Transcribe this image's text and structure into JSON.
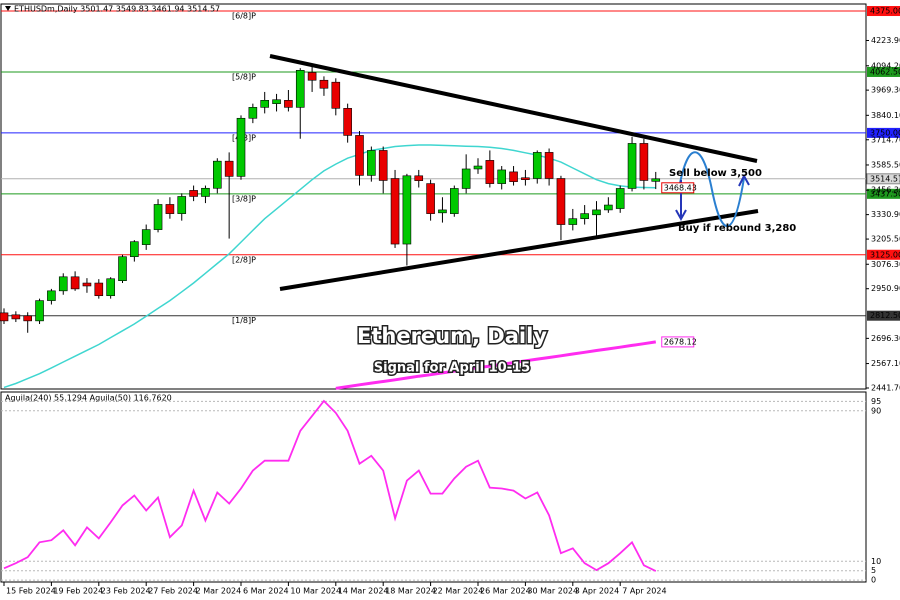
{
  "chart_data": [
    {
      "type": "candlestick",
      "title": "ETHUSDm,Daily  3501.47 3549.83 3461.94 3514.57",
      "overlay_title": "Ethereum, Daily",
      "subtitle": "Signal for April 10-15",
      "annotations": [
        {
          "text": "Sell below 3,500",
          "color": "#e8203a"
        },
        {
          "text": "Buy if rebound 3,280",
          "color": "#2536b8"
        }
      ],
      "categories": [
        "15 Feb 2024",
        null,
        null,
        null,
        "19 Feb 2024",
        null,
        null,
        null,
        "23 Feb 2024",
        null,
        null,
        null,
        "27 Feb 2024",
        null,
        null,
        null,
        "2 Mar 2024",
        null,
        null,
        null,
        "6 Mar 2024",
        null,
        null,
        null,
        "10 Mar 2024",
        null,
        null,
        null,
        "14 Mar 2024",
        null,
        null,
        null,
        "18 Mar 2024",
        null,
        null,
        null,
        "22 Mar 2024",
        null,
        null,
        null,
        "26 Mar 2024",
        null,
        null,
        null,
        "30 Mar 2024",
        null,
        null,
        null,
        "3 Apr 2024",
        null,
        null,
        null,
        "7 Apr 2024",
        null,
        null,
        null
      ],
      "open": [
        2827,
        2817,
        2812,
        2786,
        2890,
        2940,
        3012,
        2980,
        2980,
        2915,
        2992,
        3115,
        3177,
        3254,
        3383,
        3336,
        3455,
        3424,
        3466,
        3605,
        3527,
        3825,
        3881,
        3900,
        3917,
        3881,
        4060,
        4020,
        4010,
        3876,
        3737,
        3532,
        3660,
        3516,
        3180,
        3530,
        3490,
        3340,
        3336,
        3465,
        3565,
        3609,
        3490,
        3550,
        3520,
        3516,
        3650,
        3516,
        3280,
        3310,
        3330,
        3355,
        3362,
        3465,
        3696,
        3501.47
      ],
      "high": [
        2850,
        2835,
        2830,
        2900,
        2950,
        3030,
        3040,
        3005,
        3000,
        3010,
        3125,
        3200,
        3280,
        3410,
        3420,
        3440,
        3480,
        3480,
        3620,
        3650,
        3840,
        3900,
        3960,
        3950,
        3970,
        4082,
        4090,
        4040,
        4030,
        3900,
        3760,
        3680,
        3680,
        3560,
        3540,
        3560,
        3510,
        3420,
        3480,
        3640,
        3620,
        3660,
        3580,
        3580,
        3560,
        3660,
        3670,
        3530,
        3360,
        3380,
        3400,
        3420,
        3480,
        3730,
        3720,
        3549.83
      ],
      "low": [
        2770,
        2780,
        2725,
        2770,
        2870,
        2920,
        2940,
        2930,
        2900,
        2900,
        2980,
        3090,
        3150,
        3240,
        3310,
        3300,
        3400,
        3390,
        3440,
        3208,
        3510,
        3800,
        3850,
        3860,
        3860,
        3720,
        3960,
        3940,
        3840,
        3700,
        3480,
        3500,
        3440,
        3160,
        3070,
        3470,
        3300,
        3290,
        3320,
        3440,
        3540,
        3470,
        3460,
        3480,
        3480,
        3490,
        3480,
        3200,
        3250,
        3280,
        3210,
        3340,
        3340,
        3450,
        3460,
        3461.94
      ],
      "close": [
        2786,
        2796,
        2786,
        2890,
        2940,
        3012,
        2950,
        2965,
        2915,
        3002,
        3115,
        3192,
        3254,
        3383,
        3336,
        3424,
        3424,
        3466,
        3605,
        3527,
        3825,
        3881,
        3917,
        3920,
        3881,
        4071,
        4020,
        3979,
        3876,
        3737,
        3532,
        3660,
        3506,
        3180,
        3530,
        3505,
        3336,
        3355,
        3465,
        3565,
        3580,
        3490,
        3560,
        3500,
        3510,
        3650,
        3516,
        3280,
        3310,
        3336,
        3355,
        3380,
        3465,
        3696,
        3506,
        3514.57
      ],
      "up_color": "#00c800",
      "down_color": "#e80000",
      "series": [
        {
          "color": "#3fd6d0",
          "values": [
            2445,
            2465,
            2490,
            2515,
            2545,
            2575,
            2605,
            2635,
            2665,
            2700,
            2735,
            2770,
            2810,
            2850,
            2890,
            2935,
            2980,
            3030,
            3080,
            3130,
            3190,
            3250,
            3310,
            3360,
            3410,
            3460,
            3510,
            3555,
            3590,
            3620,
            3640,
            3660,
            3670,
            3680,
            3685,
            3688,
            3688,
            3686,
            3684,
            3682,
            3680,
            3676,
            3670,
            3660,
            3648,
            3636,
            3620,
            3600,
            3570,
            3540,
            3510,
            3490,
            3478,
            3472,
            3470,
            3468.43
          ]
        },
        {
          "color": "#ff2cf0",
          "values": [
            null,
            null,
            null,
            null,
            null,
            null,
            null,
            null,
            null,
            null,
            null,
            null,
            null,
            null,
            null,
            null,
            null,
            null,
            null,
            null,
            null,
            null,
            null,
            null,
            null,
            null,
            null,
            null,
            2440,
            2449,
            2458,
            2467,
            2475,
            2484,
            2493,
            2502,
            2510,
            2519,
            2528,
            2537,
            2546,
            2554,
            2563,
            2572,
            2581,
            2590,
            2598,
            2607,
            2616,
            2625,
            2634,
            2642,
            2651,
            2660,
            2669,
            2678.12
          ]
        }
      ],
      "levels": [
        {
          "name": "[6/8]P",
          "value": 4375,
          "label": "4375.00",
          "color": "#ff1010"
        },
        {
          "name": "[5/8]P",
          "value": 4062.5,
          "label": "4062.50",
          "color": "#1e9a1e"
        },
        {
          "name": "[4/8]P",
          "value": 3750,
          "label": "3750.00",
          "color": "#2020ff"
        },
        {
          "name": "[3/8]P",
          "value": 3437.5,
          "label": "3437.50",
          "color": "#1e9a1e"
        },
        {
          "name": "[2/8]P",
          "value": 3125,
          "label": "3125.00",
          "color": "#ff1010"
        },
        {
          "name": "[1/8]P",
          "value": 2812.5,
          "label": "2812.50",
          "color": "#333333"
        }
      ],
      "ylim": [
        2436.6,
        4411
      ],
      "yticks": [
        {
          "value": 4223.9,
          "label": "4223.90"
        },
        {
          "value": 4094.2,
          "label": "4094.20"
        },
        {
          "value": 3969.3,
          "label": "3969.30"
        },
        {
          "value": 3840.1,
          "label": "3840.10"
        },
        {
          "value": 3714.7,
          "label": "3714.70"
        },
        {
          "value": 3585.5,
          "label": "3585.50"
        },
        {
          "value": 3456.3,
          "label": "3456.30"
        },
        {
          "value": 3330.9,
          "label": "3330.90"
        },
        {
          "value": 3205.5,
          "label": "3205.50"
        },
        {
          "value": 3076.3,
          "label": "3076.30"
        },
        {
          "value": 2950.9,
          "label": "2950.90"
        },
        {
          "value": 2696.3,
          "label": "2696.30"
        },
        {
          "value": 2567.1,
          "label": "2567.10"
        },
        {
          "value": 2441.7,
          "label": "2441.70"
        }
      ]
    },
    {
      "type": "line",
      "title": "Aguila(240) 55.1294 Aguila(50) 116.7620",
      "series": [
        {
          "color": "#ff2cf0",
          "values": [
            6.3,
            9.0,
            12.2,
            20.1,
            21.2,
            26.5,
            18.5,
            28.0,
            22.2,
            30.7,
            39.7,
            45.0,
            37.0,
            43.9,
            22.8,
            29.1,
            47.6,
            31.7,
            46.6,
            40.7,
            48.7,
            58.2,
            63.5,
            63.5,
            63.5,
            79.4,
            87.3,
            95.2,
            88.9,
            79.4,
            61.9,
            66.1,
            58.2,
            32.8,
            52.9,
            58.2,
            46.0,
            46.0,
            54.0,
            60.3,
            63.5,
            49.2,
            48.7,
            47.6,
            43.4,
            46.6,
            34.4,
            14.3,
            16.9,
            9.0,
            5.3,
            9.0,
            14.3,
            20.1,
            7.9,
            4.8
          ]
        }
      ],
      "ylim": [
        -1,
        100
      ],
      "yticks": [
        95,
        90,
        10,
        5,
        0
      ]
    }
  ]
}
